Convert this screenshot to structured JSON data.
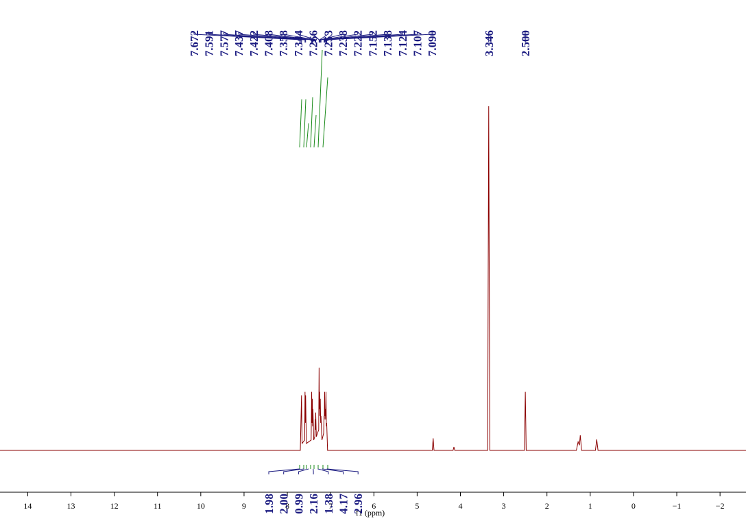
{
  "chart_data": {
    "type": "line",
    "xlabel": "f1 (ppm)",
    "xlim": [
      14.64,
      -2.6
    ],
    "ylim": [
      0,
      100
    ],
    "xticks": [
      14,
      13,
      12,
      11,
      10,
      9,
      8,
      7,
      6,
      5,
      4,
      3,
      2,
      1,
      0,
      {
        "value": -1,
        "label": "−1"
      },
      {
        "value": -2,
        "label": "−2"
      }
    ],
    "color": "#8b0000",
    "x": [
      14.64,
      7.7,
      7.672,
      7.66,
      7.6,
      7.591,
      7.584,
      7.577,
      7.56,
      7.45,
      7.437,
      7.43,
      7.422,
      7.415,
      7.408,
      7.39,
      7.365,
      7.358,
      7.351,
      7.344,
      7.33,
      7.275,
      7.266,
      7.26,
      7.253,
      7.245,
      7.238,
      7.23,
      7.222,
      7.2,
      7.16,
      7.152,
      7.145,
      7.138,
      7.131,
      7.124,
      7.115,
      7.107,
      7.098,
      7.09,
      7.07,
      4.65,
      4.63,
      4.61,
      4.17,
      4.15,
      4.13,
      3.37,
      3.346,
      3.32,
      2.52,
      2.5,
      2.48,
      1.32,
      1.28,
      1.25,
      1.23,
      1.2,
      0.88,
      0.85,
      0.82,
      -2.6
    ],
    "values": [
      0,
      0,
      16,
      2,
      3,
      17,
      8,
      16,
      2,
      3,
      17,
      8,
      15,
      7,
      12,
      3,
      4,
      9,
      6,
      11,
      4,
      6,
      24,
      12,
      17,
      10,
      15,
      8,
      10,
      3,
      5,
      10,
      9,
      17,
      10,
      12,
      9,
      17,
      7,
      8,
      0,
      0,
      3.5,
      0,
      0,
      1,
      0,
      0,
      100,
      0,
      0,
      17,
      0,
      0,
      2.5,
      1.5,
      4.4,
      0,
      0,
      3.2,
      0,
      0
    ],
    "peaks": {
      "values": [
        7.672,
        7.591,
        7.577,
        7.437,
        7.422,
        7.408,
        7.358,
        7.344,
        7.266,
        7.253,
        7.238,
        7.222,
        7.152,
        7.138,
        7.124,
        7.107,
        7.09,
        3.346,
        2.5
      ],
      "value_labels": [
        "7.672",
        "7.591",
        "7.577",
        "7.437",
        "7.422",
        "7.408",
        "7.358",
        "7.344",
        "7.266",
        "7.253",
        "7.238",
        "7.222",
        "7.152",
        "7.138",
        "7.124",
        "7.107",
        "7.090",
        "3.346",
        "2.500"
      ]
    },
    "integrals": {
      "values": [
        1.98,
        2,
        0.99,
        2.16,
        1.38,
        4.17,
        2.96
      ],
      "value_labels": [
        "1.98",
        "2.00",
        "0.99",
        "2.16",
        "1.38",
        "4.17",
        "2.96"
      ]
    }
  }
}
